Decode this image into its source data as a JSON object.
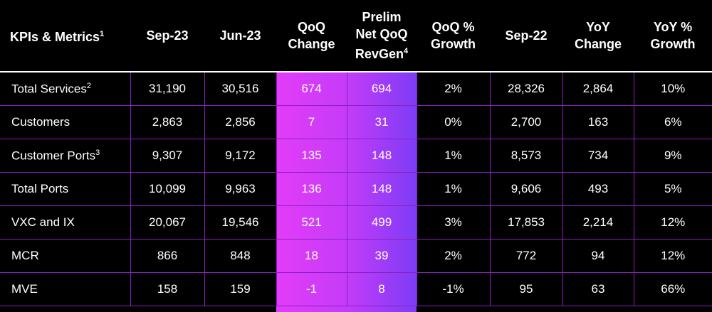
{
  "table": {
    "headers": [
      {
        "lines": [
          "KPIs & Metrics"
        ],
        "sup": "1"
      },
      {
        "lines": [
          "Sep-23"
        ]
      },
      {
        "lines": [
          "Jun-23"
        ]
      },
      {
        "lines": [
          "QoQ",
          "Change"
        ]
      },
      {
        "lines": [
          "Prelim",
          "Net QoQ",
          "RevGen"
        ],
        "sup": "4"
      },
      {
        "lines": [
          "QoQ %",
          "Growth"
        ]
      },
      {
        "lines": [
          "Sep-22"
        ]
      },
      {
        "lines": [
          "YoY",
          "Change"
        ]
      },
      {
        "lines": [
          "YoY %",
          "Growth"
        ]
      }
    ],
    "rows": [
      {
        "label": "Total Services",
        "sup": "2",
        "cells": [
          "31,190",
          "30,516",
          "674",
          "694",
          "2%",
          "28,326",
          "2,864",
          "10%"
        ]
      },
      {
        "label": "Customers",
        "cells": [
          "2,863",
          "2,856",
          "7",
          "31",
          "0%",
          "2,700",
          "163",
          "6%"
        ]
      },
      {
        "label": "Customer Ports",
        "sup": "3",
        "cells": [
          "9,307",
          "9,172",
          "135",
          "148",
          "1%",
          "8,573",
          "734",
          "9%"
        ]
      },
      {
        "label": "Total Ports",
        "cells": [
          "10,099",
          "9,963",
          "136",
          "148",
          "1%",
          "9,606",
          "493",
          "5%"
        ]
      },
      {
        "label": "VXC and IX",
        "cells": [
          "20,067",
          "19,546",
          "521",
          "499",
          "3%",
          "17,853",
          "2,214",
          "12%"
        ]
      },
      {
        "label": "MCR",
        "cells": [
          "866",
          "848",
          "18",
          "39",
          "2%",
          "772",
          "94",
          "12%"
        ]
      },
      {
        "label": "MVE",
        "cells": [
          "158",
          "159",
          "-1",
          "8",
          "-1%",
          "95",
          "63",
          "66%"
        ]
      }
    ]
  }
}
